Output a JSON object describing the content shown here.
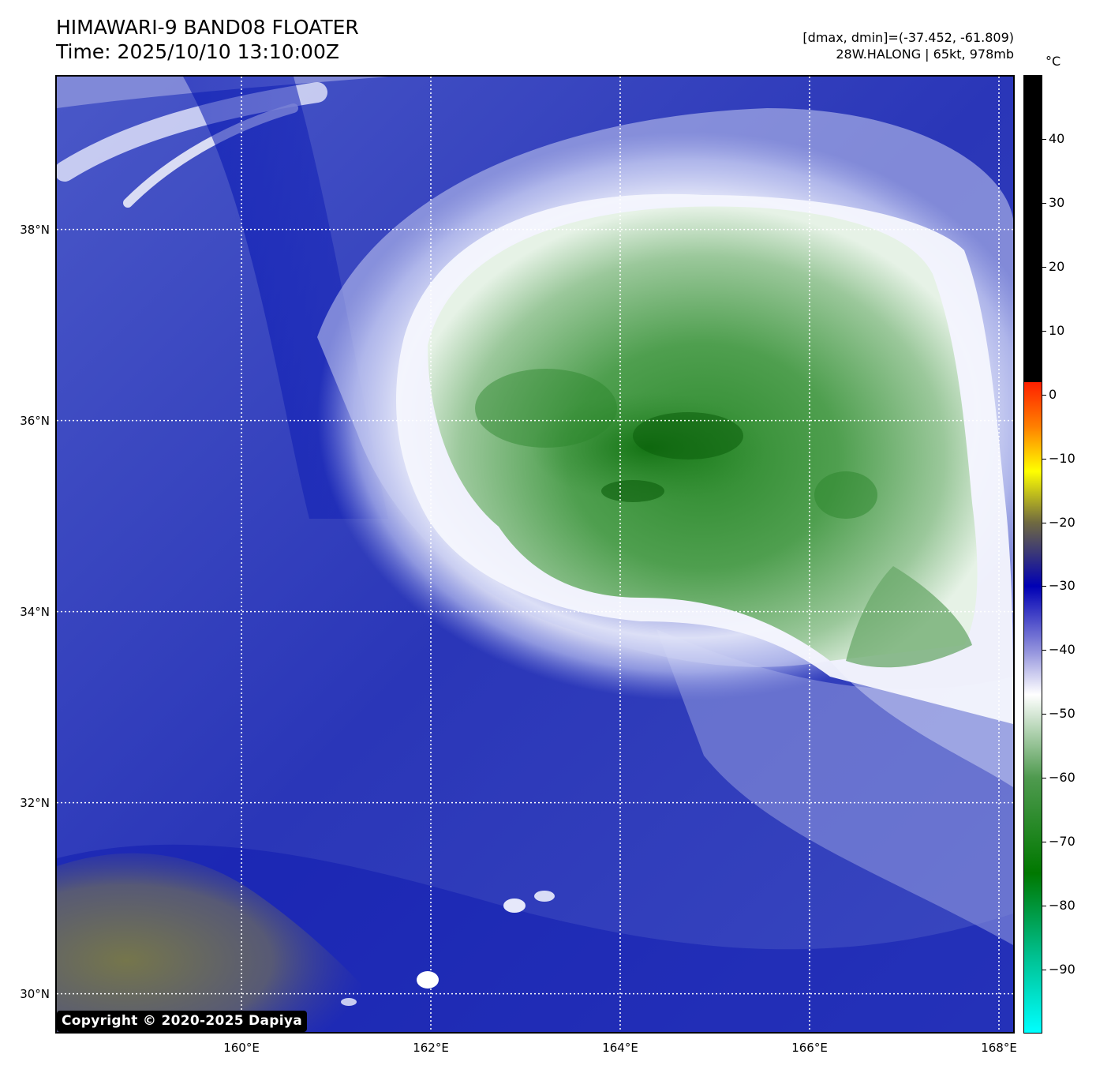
{
  "header": {
    "title": "HIMAWARI-9 BAND08 FLOATER",
    "time": "Time: 2025/10/10 13:10:00Z",
    "range": "[dmax, dmin]=(-37.452, -61.809)",
    "storm": "28W.HALONG | 65kt, 978mb"
  },
  "map": {
    "lon_range": [
      158.05,
      168.15
    ],
    "lat_range": [
      29.6,
      39.6
    ],
    "lat_ticks": [
      {
        "value": 38,
        "label": "38°N"
      },
      {
        "value": 36,
        "label": "36°N"
      },
      {
        "value": 34,
        "label": "34°N"
      },
      {
        "value": 32,
        "label": "32°N"
      },
      {
        "value": 30,
        "label": "30°N"
      }
    ],
    "lon_ticks": [
      {
        "value": 160,
        "label": "160°E"
      },
      {
        "value": 162,
        "label": "162°E"
      },
      {
        "value": 164,
        "label": "164°E"
      },
      {
        "value": 166,
        "label": "166°E"
      },
      {
        "value": 168,
        "label": "168°E"
      }
    ],
    "grid": true,
    "grid_style": "dotted-white"
  },
  "colorbar": {
    "unit": "°C",
    "range": [
      -100,
      50
    ],
    "ticks": [
      {
        "value": 40,
        "label": "40"
      },
      {
        "value": 30,
        "label": "30"
      },
      {
        "value": 20,
        "label": "20"
      },
      {
        "value": 10,
        "label": "10"
      },
      {
        "value": 0,
        "label": "0"
      },
      {
        "value": -10,
        "label": "−10"
      },
      {
        "value": -20,
        "label": "−20"
      },
      {
        "value": -30,
        "label": "−30"
      },
      {
        "value": -40,
        "label": "−40"
      },
      {
        "value": -50,
        "label": "−50"
      },
      {
        "value": -60,
        "label": "−60"
      },
      {
        "value": -70,
        "label": "−70"
      },
      {
        "value": -80,
        "label": "−80"
      },
      {
        "value": -90,
        "label": "−90"
      }
    ],
    "stops": [
      {
        "value": 50,
        "color": "#000000"
      },
      {
        "value": 2,
        "color": "#000000"
      },
      {
        "value": 2,
        "color": "#ff2000"
      },
      {
        "value": -5,
        "color": "#ff8000"
      },
      {
        "value": -12,
        "color": "#ffff00"
      },
      {
        "value": -20,
        "color": "#706a40"
      },
      {
        "value": -30,
        "color": "#0000b4"
      },
      {
        "value": -40,
        "color": "#9090dc"
      },
      {
        "value": -47,
        "color": "#ffffff"
      },
      {
        "value": -60,
        "color": "#4f9a4f"
      },
      {
        "value": -75,
        "color": "#007800"
      },
      {
        "value": -88,
        "color": "#00c090"
      },
      {
        "value": -100,
        "color": "#00ffff"
      }
    ]
  },
  "copyright": "Copyright © 2020-2025 Dapiya"
}
